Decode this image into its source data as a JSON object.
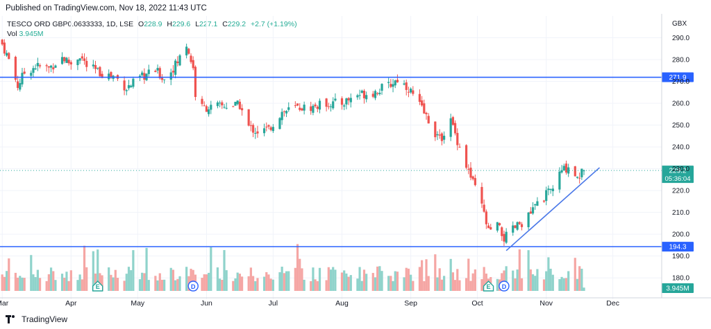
{
  "header": {
    "published": "Published on TradingView.com, Nov 18, 2022 11:43 UTC"
  },
  "legend": {
    "symbol": "TESCO ORD GBP0.0633333, 1D, LSE",
    "open_label": "O",
    "open": "228.9",
    "high_label": "H",
    "high": "229.6",
    "low_label": "L",
    "low": "227.1",
    "close_label": "C",
    "close": "229.2",
    "change": "+2.7 (+1.19%)",
    "vol_label": "Vol",
    "vol": "3.945M"
  },
  "currency": "GBX",
  "footer": {
    "brand": "TradingView"
  },
  "colors": {
    "up": "#26a69a",
    "down": "#ef5350",
    "vol_up": "#8fd3cb",
    "vol_down": "#f5a6a4",
    "hline": "#2962ff",
    "trend": "#4a78e8",
    "last": "#26a69a"
  },
  "chart_data": {
    "type": "candlestick",
    "price_axis": {
      "ticks": [
        290,
        280,
        270,
        260,
        250,
        240,
        230,
        220,
        210,
        200,
        190,
        180
      ],
      "tick_labels": [
        "290.0",
        "280.0",
        "270.0",
        "260.0",
        "250.0",
        "240.0",
        "230.0",
        "220.0",
        "210.0",
        "200.0",
        "190.0",
        "180.0"
      ],
      "range": [
        173.4,
        300
      ]
    },
    "time_axis": [
      "Mar",
      "Apr",
      "May",
      "Jun",
      "Jul",
      "Aug",
      "Sep",
      "Oct",
      "Nov",
      "Dec"
    ],
    "horizontal_lines": [
      {
        "value": 271.9,
        "label": "271.9"
      },
      {
        "value": 194.3,
        "label": "194.3"
      }
    ],
    "last_price": {
      "value": 229.2,
      "label": "229.2",
      "countdown": "05:36:04"
    },
    "volume_label": "3.945M",
    "trend_line": {
      "from": [
        "2022-10-14",
        192.5
      ],
      "to": [
        "2022-11-25",
        230.5
      ]
    },
    "events": [
      {
        "date": "2022-04-13",
        "kind": "earnings",
        "glyph": "E"
      },
      {
        "date": "2022-05-26",
        "kind": "dividend",
        "glyph": "D"
      },
      {
        "date": "2022-10-06",
        "kind": "earnings",
        "glyph": "E"
      },
      {
        "date": "2022-10-13",
        "kind": "dividend",
        "glyph": "D"
      }
    ],
    "close_path": [
      [
        "2022-03-01",
        287
      ],
      [
        "2022-03-04",
        280
      ],
      [
        "2022-03-08",
        268
      ],
      [
        "2022-03-11",
        274
      ],
      [
        "2022-03-16",
        277
      ],
      [
        "2022-03-22",
        276
      ],
      [
        "2022-03-28",
        281
      ],
      [
        "2022-04-01",
        278
      ],
      [
        "2022-04-05",
        282
      ],
      [
        "2022-04-08",
        277
      ],
      [
        "2022-04-14",
        274
      ],
      [
        "2022-04-21",
        272
      ],
      [
        "2022-04-26",
        267
      ],
      [
        "2022-05-03",
        272
      ],
      [
        "2022-05-09",
        275
      ],
      [
        "2022-05-13",
        271
      ],
      [
        "2022-05-19",
        279
      ],
      [
        "2022-05-23",
        287
      ],
      [
        "2022-05-26",
        276
      ],
      [
        "2022-05-27",
        264
      ],
      [
        "2022-05-30",
        258
      ],
      [
        "2022-06-03",
        258
      ],
      [
        "2022-06-10",
        259
      ],
      [
        "2022-06-16",
        259
      ],
      [
        "2022-06-20",
        249
      ],
      [
        "2022-06-24",
        247
      ],
      [
        "2022-06-29",
        248
      ],
      [
        "2022-07-05",
        256
      ],
      [
        "2022-07-12",
        258
      ],
      [
        "2022-07-18",
        258
      ],
      [
        "2022-07-25",
        260
      ],
      [
        "2022-08-01",
        260
      ],
      [
        "2022-08-08",
        264
      ],
      [
        "2022-08-15",
        265
      ],
      [
        "2022-08-22",
        268
      ],
      [
        "2022-08-26",
        271
      ],
      [
        "2022-08-31",
        267
      ],
      [
        "2022-09-05",
        259
      ],
      [
        "2022-09-09",
        252
      ],
      [
        "2022-09-14",
        243
      ],
      [
        "2022-09-19",
        252
      ],
      [
        "2022-09-23",
        240
      ],
      [
        "2022-09-28",
        226
      ],
      [
        "2022-10-03",
        213
      ],
      [
        "2022-10-06",
        201
      ],
      [
        "2022-10-10",
        204
      ],
      [
        "2022-10-13",
        198
      ],
      [
        "2022-10-18",
        203
      ],
      [
        "2022-10-24",
        208
      ],
      [
        "2022-10-28",
        214
      ],
      [
        "2022-11-03",
        220
      ],
      [
        "2022-11-08",
        229
      ],
      [
        "2022-11-11",
        231
      ],
      [
        "2022-11-15",
        226
      ],
      [
        "2022-11-18",
        229.2
      ]
    ]
  }
}
